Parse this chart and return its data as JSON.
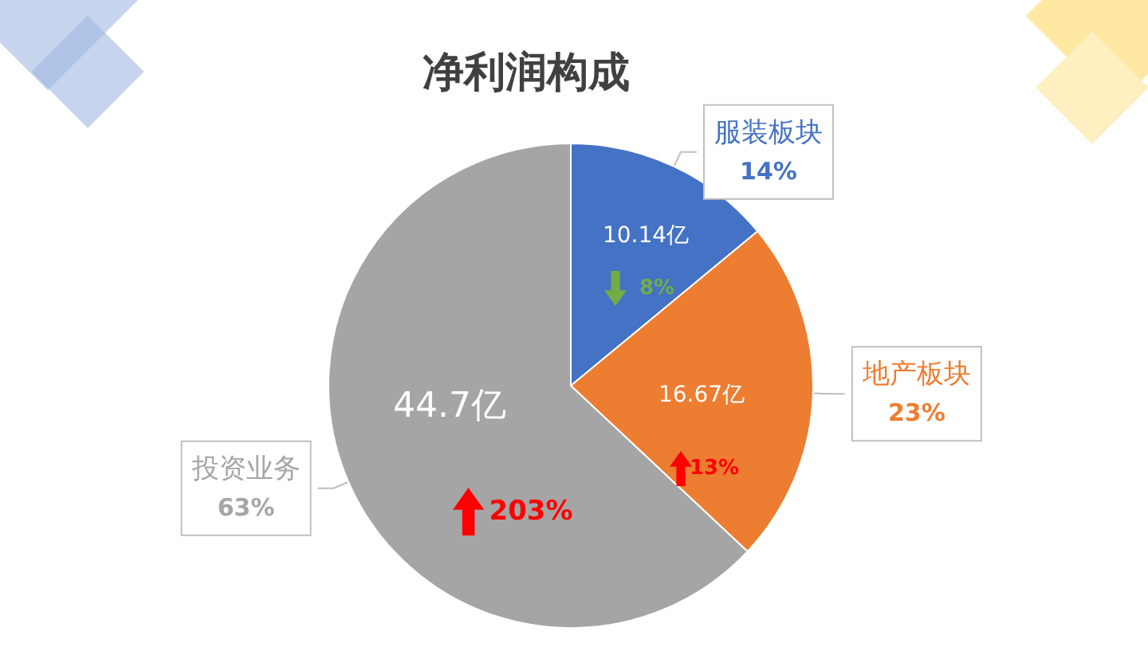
{
  "chart_data": {
    "type": "pie",
    "title": "净利润构成",
    "categories": [
      "服装板块",
      "地产板块",
      "投资业务"
    ],
    "values": [
      14,
      23,
      63
    ],
    "value_labels": [
      "14%",
      "23%",
      "63%"
    ],
    "colors": [
      "#4472c4",
      "#ed7d31",
      "#a5a5a5"
    ],
    "annotations": [
      "10.14亿",
      "8%",
      "16.67亿",
      "13%",
      "44.7亿",
      "203%"
    ],
    "legend": false
  }
}
